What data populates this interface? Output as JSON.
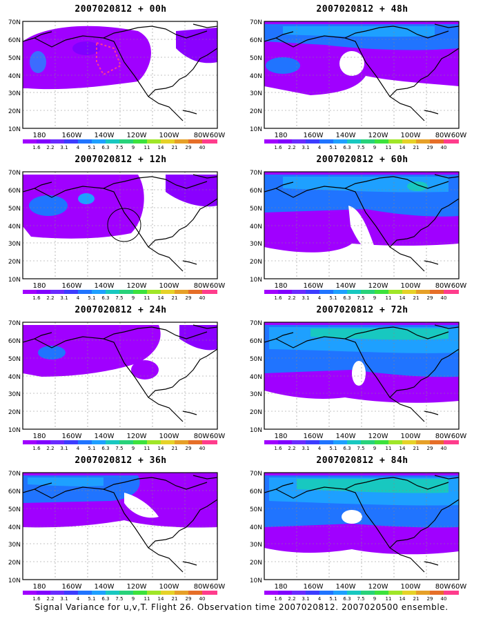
{
  "colorbar": {
    "labels": [
      "1.6",
      "2.2",
      "3.1",
      "4",
      "5.1",
      "6.3",
      "7.5",
      "9",
      "11",
      "14",
      "21",
      "29",
      "40"
    ],
    "colors": [
      "#a000ff",
      "#8000ff",
      "#6a2bff",
      "#3c3cff",
      "#2074ff",
      "#1ea0ff",
      "#18c8c0",
      "#28d27a",
      "#3ce23c",
      "#a0e628",
      "#e6d228",
      "#e6a028",
      "#e66e28",
      "#ff3c8c"
    ]
  },
  "axes": {
    "lat_labels": [
      "70N",
      "60N",
      "50N",
      "40N",
      "30N",
      "20N",
      "10N"
    ],
    "lon_labels": [
      "180",
      "160W",
      "140W",
      "120W",
      "100W",
      "80W",
      "60W"
    ]
  },
  "panels": [
    {
      "title": "2007020812 + 00h"
    },
    {
      "title": "2007020812 + 48h"
    },
    {
      "title": "2007020812 + 12h"
    },
    {
      "title": "2007020812 + 60h"
    },
    {
      "title": "2007020812 + 24h"
    },
    {
      "title": "2007020812 + 72h"
    },
    {
      "title": "2007020812 + 36h"
    },
    {
      "title": "2007020812 + 84h"
    }
  ],
  "caption": "Signal Variance for u,v,T. Flight 26. Observation time 2007020812. 2007020500 ensemble."
}
